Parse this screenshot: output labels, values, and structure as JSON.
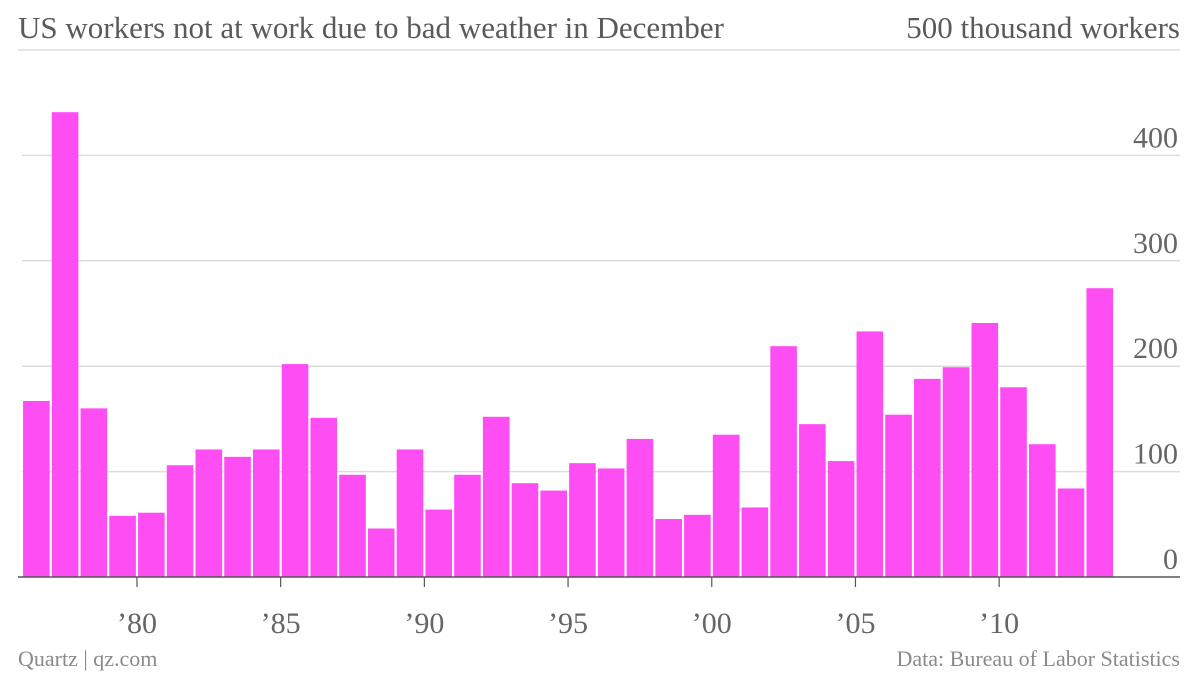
{
  "header": {
    "title": "US workers not at work due to bad weather in December",
    "top_right_label": "500 thousand workers"
  },
  "footer": {
    "source_left": "Quartz | qz.com",
    "source_right": "Data: Bureau of Labor Statistics"
  },
  "colors": {
    "bar": "#ff4df4",
    "grid": "#dddddd",
    "axis": "#555555"
  },
  "chart_data": {
    "type": "bar",
    "title": "US workers not at work due to bad weather in December",
    "unit_label": "500 thousand workers",
    "x": [
      1976,
      1977,
      1978,
      1979,
      1980,
      1981,
      1982,
      1983,
      1984,
      1985,
      1986,
      1987,
      1988,
      1989,
      1990,
      1991,
      1992,
      1993,
      1994,
      1995,
      1996,
      1997,
      1998,
      1999,
      2000,
      2001,
      2002,
      2003,
      2004,
      2005,
      2006,
      2007,
      2008,
      2009,
      2010,
      2011,
      2012,
      2013
    ],
    "values": [
      167,
      441,
      160,
      58,
      61,
      106,
      121,
      114,
      121,
      202,
      151,
      97,
      46,
      121,
      64,
      97,
      152,
      89,
      82,
      108,
      103,
      131,
      55,
      59,
      135,
      66,
      219,
      145,
      110,
      233,
      154,
      188,
      199,
      241,
      180,
      126,
      84,
      274
    ],
    "x_ticks": [
      {
        "year": 1980,
        "label": "’80"
      },
      {
        "year": 1985,
        "label": "’85"
      },
      {
        "year": 1990,
        "label": "’90"
      },
      {
        "year": 1995,
        "label": "’95"
      },
      {
        "year": 2000,
        "label": "’00"
      },
      {
        "year": 2005,
        "label": "’05"
      },
      {
        "year": 2010,
        "label": "’10"
      }
    ],
    "y_ticks": [
      0,
      100,
      200,
      300,
      400
    ],
    "ylim": [
      0,
      500
    ],
    "grid": true,
    "y_axis_side": "right"
  }
}
